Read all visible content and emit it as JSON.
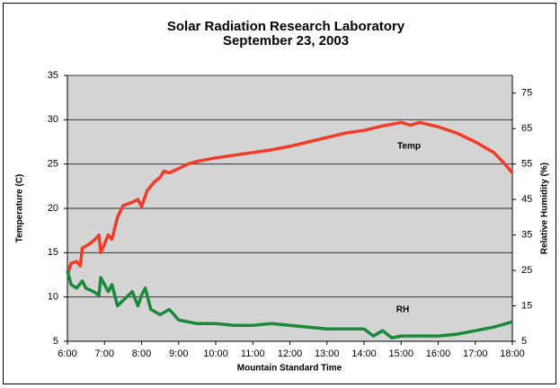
{
  "chart_data": {
    "type": "line",
    "title": "Solar Radiation Research Laboratory",
    "subtitle": "September 23, 2003",
    "xlabel": "Mountain Standard Time",
    "ylabel": "Temperature (C)",
    "y2label": "Relative Humidity (%)",
    "xlim": [
      6,
      18
    ],
    "xticks": [
      {
        "value": 6,
        "label": "6:00"
      },
      {
        "value": 7,
        "label": "7:00"
      },
      {
        "value": 8,
        "label": "8:00"
      },
      {
        "value": 9,
        "label": "9:00"
      },
      {
        "value": 10,
        "label": "10:00"
      },
      {
        "value": 11,
        "label": "11:00"
      },
      {
        "value": 12,
        "label": "12:00"
      },
      {
        "value": 13,
        "label": "13:00"
      },
      {
        "value": 14,
        "label": "14:00"
      },
      {
        "value": 15,
        "label": "15:00"
      },
      {
        "value": 16,
        "label": "16:00"
      },
      {
        "value": 17,
        "label": "17:00"
      },
      {
        "value": 18,
        "label": "18:00"
      }
    ],
    "ylim": [
      5,
      35
    ],
    "yticks": [
      5,
      10,
      15,
      20,
      25,
      30,
      35
    ],
    "y2lim": [
      5,
      80
    ],
    "y2ticks": [
      5,
      15,
      25,
      35,
      45,
      55,
      65,
      75
    ],
    "grid": true,
    "series": [
      {
        "name": "Temp",
        "color": "#f03c28",
        "x": [
          6.0,
          6.1,
          6.25,
          6.35,
          6.4,
          6.6,
          6.75,
          6.85,
          6.9,
          7.0,
          7.1,
          7.2,
          7.35,
          7.5,
          7.75,
          7.9,
          8.0,
          8.15,
          8.35,
          8.5,
          8.6,
          8.75,
          9.0,
          9.25,
          9.5,
          9.75,
          10,
          10.5,
          11,
          11.5,
          12,
          12.5,
          13,
          13.5,
          14,
          14.5,
          15,
          15.25,
          15.5,
          16,
          16.5,
          17,
          17.5,
          17.8,
          18
        ],
        "values": [
          12.5,
          13.8,
          14,
          13.5,
          15.5,
          16,
          16.5,
          17,
          15,
          16,
          17,
          16.5,
          19,
          20.3,
          20.7,
          21,
          20.2,
          22,
          23,
          23.5,
          24.2,
          24,
          24.5,
          25,
          25.3,
          25.5,
          25.7,
          26,
          26.3,
          26.6,
          27,
          27.5,
          28,
          28.5,
          28.8,
          29.3,
          29.7,
          29.4,
          29.7,
          29.2,
          28.5,
          27.5,
          26.3,
          25,
          24
        ]
      },
      {
        "name": "RH",
        "color": "#1a8a3a",
        "axis": "y2",
        "x": [
          6.0,
          6.1,
          6.25,
          6.4,
          6.5,
          6.7,
          6.85,
          6.9,
          7.0,
          7.1,
          7.2,
          7.35,
          7.5,
          7.75,
          7.9,
          8.0,
          8.1,
          8.25,
          8.5,
          8.75,
          9.0,
          9.5,
          10,
          10.5,
          11,
          11.5,
          12,
          12.5,
          13,
          13.5,
          14,
          14.25,
          14.5,
          14.75,
          15,
          15.5,
          16,
          16.5,
          17,
          17.5,
          18
        ],
        "values": [
          25,
          21,
          20,
          22,
          20,
          19,
          18,
          23,
          21,
          19,
          21,
          15,
          16.5,
          19,
          15,
          18,
          20,
          14,
          12.5,
          14,
          11,
          10,
          10,
          9.5,
          9.5,
          10,
          9.5,
          9,
          8.5,
          8.5,
          8.5,
          6.5,
          8,
          6,
          6.5,
          6.5,
          6.5,
          7,
          8,
          9,
          10.5
        ]
      }
    ]
  }
}
